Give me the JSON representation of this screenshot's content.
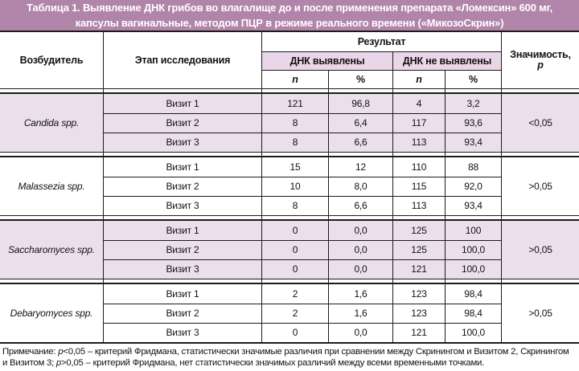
{
  "title": {
    "line1": "Таблица 1. Выявление ДНК грибов во влагалище до и после применения препарата «Ломексин» 600 мг,",
    "line2": "капсулы вагинальные, методом ПЦР в режиме реального времени («МикозоСкрин»)"
  },
  "colors": {
    "title_bar": "#b184aa",
    "shaded_section": "#ebdfec",
    "header_shade": "#e9d6e8",
    "line": "#1c1c1c",
    "text": "#121212"
  },
  "header": {
    "pathogen": "Возбудитель",
    "stage": "Этап исследования",
    "result": "Результат",
    "dna_detected": "ДНК выявлены",
    "dna_not_detected": "ДНК не выявлены",
    "n": "n",
    "percent": "%",
    "significance_line1": "Значимость,",
    "significance_line2": "p"
  },
  "sections": [
    {
      "pathogen": "Candida spp.",
      "significance": "<0,05",
      "rows": [
        {
          "stage": "Визит 1",
          "detected_n": "121",
          "detected_pct": "96,8",
          "not_detected_n": "4",
          "not_detected_pct": "3,2"
        },
        {
          "stage": "Визит 2",
          "detected_n": "8",
          "detected_pct": "6,4",
          "not_detected_n": "117",
          "not_detected_pct": "93,6"
        },
        {
          "stage": "Визит 3",
          "detected_n": "8",
          "detected_pct": "6,6",
          "not_detected_n": "113",
          "not_detected_pct": "93,4"
        }
      ]
    },
    {
      "pathogen": "Malassezia spp.",
      "significance": ">0,05",
      "rows": [
        {
          "stage": "Визит 1",
          "detected_n": "15",
          "detected_pct": "12",
          "not_detected_n": "110",
          "not_detected_pct": "88"
        },
        {
          "stage": "Визит 2",
          "detected_n": "10",
          "detected_pct": "8,0",
          "not_detected_n": "115",
          "not_detected_pct": "92,0"
        },
        {
          "stage": "Визит 3",
          "detected_n": "8",
          "detected_pct": "6,6",
          "not_detected_n": "113",
          "not_detected_pct": "93,4"
        }
      ]
    },
    {
      "pathogen": "Saccharomyces spp.",
      "significance": ">0,05",
      "rows": [
        {
          "stage": "Визит 1",
          "detected_n": "0",
          "detected_pct": "0,0",
          "not_detected_n": "125",
          "not_detected_pct": "100"
        },
        {
          "stage": "Визит 2",
          "detected_n": "0",
          "detected_pct": "0,0",
          "not_detected_n": "125",
          "not_detected_pct": "100,0"
        },
        {
          "stage": "Визит 3",
          "detected_n": "0",
          "detected_pct": "0,0",
          "not_detected_n": "121",
          "not_detected_pct": "100,0"
        }
      ]
    },
    {
      "pathogen": "Debaryomyces spp.",
      "significance": ">0,05",
      "rows": [
        {
          "stage": "Визит 1",
          "detected_n": "2",
          "detected_pct": "1,6",
          "not_detected_n": "123",
          "not_detected_pct": "98,4"
        },
        {
          "stage": "Визит 2",
          "detected_n": "2",
          "detected_pct": "1,6",
          "not_detected_n": "123",
          "not_detected_pct": "98,4"
        },
        {
          "stage": "Визит 3",
          "detected_n": "0",
          "detected_pct": "0,0",
          "not_detected_n": "121",
          "not_detected_pct": "100,0"
        }
      ]
    }
  ],
  "note": {
    "part1": "Примечание: ",
    "p1": "p",
    "part2": "<0,05 – критерий Фридмана, статистически значимые различия при сравнении между Скринингом и Визитом 2, Скринингом и Визитом 3; ",
    "p2": "p",
    "part3": ">0,05 – критерий Фридмана, нет статистически значимых различий между всеми временными точками."
  }
}
